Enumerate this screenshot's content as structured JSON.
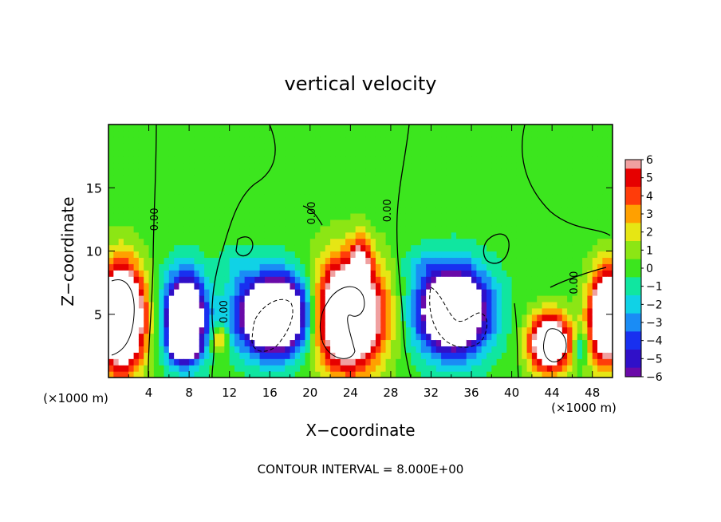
{
  "chart_data": {
    "type": "heatmap",
    "title": "vertical velocity",
    "xlabel": "X−coordinate",
    "ylabel": "Z−coordinate",
    "x_unit_left": "(×1000 m)",
    "x_unit_right": "(×1000 m)",
    "xlim": [
      0,
      50
    ],
    "ylim": [
      0,
      20
    ],
    "xticks": [
      {
        "v": 4,
        "label": "4"
      },
      {
        "v": 8,
        "label": "8"
      },
      {
        "v": 12,
        "label": "12"
      },
      {
        "v": 16,
        "label": "16"
      },
      {
        "v": 20,
        "label": "20"
      },
      {
        "v": 24,
        "label": "24"
      },
      {
        "v": 28,
        "label": "28"
      },
      {
        "v": 32,
        "label": "32"
      },
      {
        "v": 36,
        "label": "36"
      },
      {
        "v": 40,
        "label": "40"
      },
      {
        "v": 44,
        "label": "44"
      },
      {
        "v": 48,
        "label": "48"
      }
    ],
    "yticks": [
      {
        "v": 5,
        "label": "5"
      },
      {
        "v": 10,
        "label": "10"
      },
      {
        "v": 15,
        "label": "15"
      }
    ],
    "colorbar": {
      "range": [
        -6,
        6
      ],
      "ticks": [
        {
          "v": 6,
          "label": "6"
        },
        {
          "v": 5,
          "label": "5"
        },
        {
          "v": 4,
          "label": "4"
        },
        {
          "v": 3,
          "label": "3"
        },
        {
          "v": 2,
          "label": "2"
        },
        {
          "v": 1,
          "label": "1"
        },
        {
          "v": 0,
          "label": "0"
        },
        {
          "v": -1,
          "label": "−1"
        },
        {
          "v": -2,
          "label": "−2"
        },
        {
          "v": -3,
          "label": "−3"
        },
        {
          "v": -4,
          "label": "−4"
        },
        {
          "v": -5,
          "label": "−5"
        },
        {
          "v": -6,
          "label": "−6"
        }
      ],
      "stops": [
        {
          "v": -6,
          "color": "#6a0aa8"
        },
        {
          "v": -5,
          "color": "#3010c8"
        },
        {
          "v": -4,
          "color": "#1830f0"
        },
        {
          "v": -3,
          "color": "#1a8cf5"
        },
        {
          "v": -2,
          "color": "#10d2e6"
        },
        {
          "v": -1,
          "color": "#10e6a0"
        },
        {
          "v": 0,
          "color": "#3ce61e"
        },
        {
          "v": 1,
          "color": "#8ce614"
        },
        {
          "v": 2,
          "color": "#e6e614"
        },
        {
          "v": 3,
          "color": "#ffa000"
        },
        {
          "v": 4,
          "color": "#ff3c0a"
        },
        {
          "v": 5,
          "color": "#e60000"
        },
        {
          "v": 6,
          "color": "#f0a0a0"
        }
      ],
      "above_max_color": "#ffffff",
      "below_min_color": "#ffffff"
    },
    "contour_labels": [
      {
        "text": "0.00",
        "x": 4.9,
        "z": 12.5
      },
      {
        "text": "0.00",
        "x": 11.8,
        "z": 5.2
      },
      {
        "text": "0.00",
        "x": 20.5,
        "z": 13.0
      },
      {
        "text": "0.00",
        "x": 28.0,
        "z": 13.2
      },
      {
        "text": "0.00",
        "x": 46.5,
        "z": 7.5
      }
    ],
    "features": [
      {
        "x": 1.3,
        "z": 4.8,
        "rx": 2.2,
        "rz": 4.0,
        "amp": 14
      },
      {
        "x": 7.6,
        "z": 4.8,
        "rx": 2.0,
        "rz": 3.3,
        "amp": -12
      },
      {
        "x": 7.6,
        "z": 2.4,
        "rx": 1.2,
        "rz": 0.8,
        "amp": -9
      },
      {
        "x": 16.5,
        "z": 5.0,
        "rx": 3.5,
        "rz": 3.0,
        "amp": -14
      },
      {
        "x": 11.0,
        "z": 3.0,
        "rx": 0.8,
        "rz": 1.2,
        "amp": 3.5
      },
      {
        "x": 23.8,
        "z": 5.0,
        "rx": 3.4,
        "rz": 4.2,
        "amp": 13
      },
      {
        "x": 25.0,
        "z": 9.5,
        "rx": 1.0,
        "rz": 1.8,
        "amp": 4
      },
      {
        "x": 34.2,
        "z": 5.3,
        "rx": 3.4,
        "rz": 3.3,
        "amp": -13
      },
      {
        "x": 43.8,
        "z": 2.8,
        "rx": 2.0,
        "rz": 2.2,
        "amp": 11
      },
      {
        "x": 49.5,
        "z": 4.8,
        "rx": 1.8,
        "rz": 3.6,
        "amp": 12
      },
      {
        "x": 46.8,
        "z": 2.5,
        "rx": 0.7,
        "rz": 1.4,
        "amp": -3
      },
      {
        "x": 12.5,
        "z": 9.0,
        "rx": 1.5,
        "rz": 1.5,
        "amp": -1.2
      },
      {
        "x": 31.0,
        "z": 9.0,
        "rx": 2.0,
        "rz": 1.2,
        "amp": -1.2
      }
    ]
  },
  "footer": {
    "contour_interval": "CONTOUR INTERVAL = 8.000E+00"
  }
}
